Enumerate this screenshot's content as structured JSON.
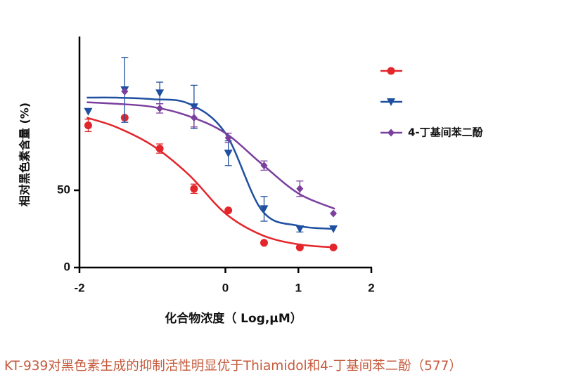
{
  "chart_data": {
    "type": "dose-response",
    "y_label": "相对黑色素含量 (%)",
    "x_label": "化合物浓度（ Log,μM）",
    "caption": "KT-939对黑色素生成的抑制活性明显优于Thiamidol和4-丁基间苯二酚（577）",
    "xlim": [
      -2,
      2
    ],
    "xticks": [
      -2,
      0,
      1,
      2
    ],
    "ylim": [
      0,
      150
    ],
    "yticks": [
      0,
      50
    ],
    "curve_x": [
      -1.9,
      -1.5,
      -1,
      -0.5,
      0,
      0.5,
      1,
      1.5
    ],
    "series": [
      {
        "color": "#e3262b",
        "marker": "circle",
        "x": [
          -1.88,
          -1.38,
          -0.9,
          -0.43,
          0.04,
          0.53,
          1.02,
          1.48
        ],
        "values": [
          92,
          97,
          77,
          51,
          37,
          16,
          13,
          13
        ],
        "errors": [
          4,
          null,
          3,
          3,
          null,
          null,
          null,
          null
        ],
        "curve": [
          97,
          91,
          79,
          60,
          35,
          21,
          15,
          13
        ]
      },
      {
        "color": "#1f4fa0",
        "marker": "triangle-down",
        "x": [
          -1.88,
          -1.38,
          -0.9,
          -0.43,
          0.04,
          0.53,
          1.02,
          1.48
        ],
        "values": [
          101,
          115,
          113,
          104,
          74,
          38,
          25,
          25
        ],
        "errors": [
          null,
          21,
          7,
          14,
          8,
          8,
          2,
          null
        ],
        "curve": [
          110,
          110,
          109,
          106,
          87,
          37,
          27,
          25
        ]
      },
      {
        "name": "4-丁基间苯二酚",
        "color": "#7b3f9e",
        "marker": "diamond",
        "x": [
          -1.38,
          -0.9,
          -0.43,
          0.04,
          0.53,
          1.02,
          1.48
        ],
        "values": [
          114,
          103,
          97,
          84,
          66,
          51,
          35
        ],
        "errors": [
          null,
          3,
          6,
          3,
          3,
          5,
          null
        ],
        "curve": [
          107,
          106,
          104,
          98,
          87,
          67,
          48,
          38
        ]
      }
    ]
  }
}
